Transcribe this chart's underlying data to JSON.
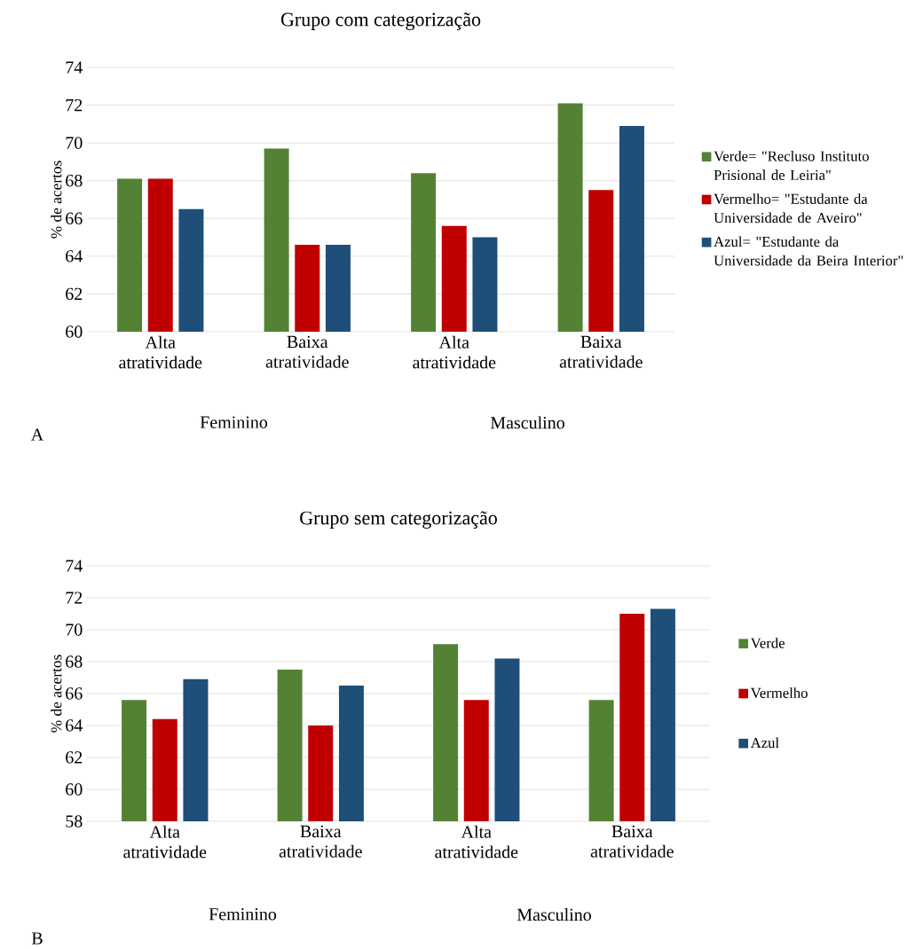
{
  "chart_data": [
    {
      "type": "bar",
      "title": "Grupo com categorização",
      "ylabel": "% de acertos",
      "categories": [
        "Alta atratividade",
        "Baixa atratividade",
        "Alta atratividade",
        "Baixa atratividade"
      ],
      "series": [
        {
          "name": "Verde= \"Recluso Instituto Prisional de Leiria\"",
          "color": "#548235",
          "values": [
            68.1,
            69.7,
            68.4,
            72.1
          ]
        },
        {
          "name": "Vermelho= \"Estudante da Universidade de Aveiro\"",
          "color": "#c00000",
          "values": [
            68.1,
            64.6,
            65.6,
            67.5
          ]
        },
        {
          "name": "Azul= \"Estudante da Universidade da Beira Interior\"",
          "color": "#1f4e79",
          "values": [
            66.5,
            64.6,
            65.0,
            70.9
          ]
        }
      ],
      "ylim": [
        60,
        74
      ],
      "yticks": [
        60,
        62,
        64,
        66,
        68,
        70,
        72,
        74
      ],
      "grid": "y",
      "legend": "right",
      "annotations": [
        "Feminino",
        "Masculino",
        "A"
      ]
    },
    {
      "type": "bar",
      "title": "Grupo sem categorização",
      "ylabel": "% de acertos",
      "categories": [
        "Alta atratividade",
        "Baixa atratividade",
        "Alta atratividade",
        "Baixa atratividade"
      ],
      "series": [
        {
          "name": "Verde",
          "color": "#548235",
          "values": [
            65.6,
            67.5,
            69.1,
            65.6
          ]
        },
        {
          "name": "Vermelho",
          "color": "#c00000",
          "values": [
            64.4,
            64.0,
            65.6,
            71.0
          ]
        },
        {
          "name": "Azul",
          "color": "#1f4e79",
          "values": [
            66.9,
            66.5,
            68.2,
            71.3
          ]
        }
      ],
      "ylim": [
        58,
        74
      ],
      "yticks": [
        58,
        60,
        62,
        64,
        66,
        68,
        70,
        72,
        74
      ],
      "grid": "y",
      "legend": "right",
      "annotations": [
        "Feminino",
        "Masculino",
        "B"
      ]
    }
  ]
}
